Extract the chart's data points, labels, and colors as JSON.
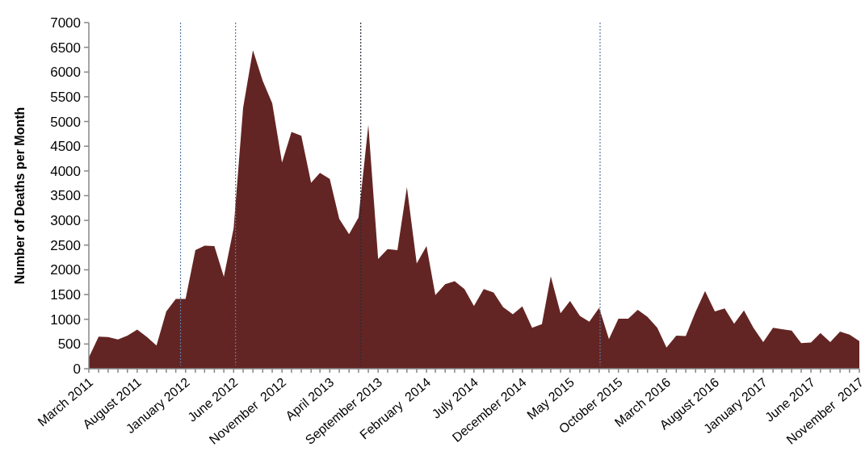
{
  "chart_data": {
    "type": "area",
    "ylabel": "Number of Deaths per Month",
    "x": [
      "2011-03",
      "2011-04",
      "2011-05",
      "2011-06",
      "2011-07",
      "2011-08",
      "2011-09",
      "2011-10",
      "2011-11",
      "2011-12",
      "2012-01",
      "2012-02",
      "2012-03",
      "2012-04",
      "2012-05",
      "2012-06",
      "2012-07",
      "2012-08",
      "2012-09",
      "2012-10",
      "2012-11",
      "2012-12",
      "2013-01",
      "2013-02",
      "2013-03",
      "2013-04",
      "2013-05",
      "2013-06",
      "2013-07",
      "2013-08",
      "2013-09",
      "2013-10",
      "2013-11",
      "2013-12",
      "2014-01",
      "2014-02",
      "2014-03",
      "2014-04",
      "2014-05",
      "2014-06",
      "2014-07",
      "2014-08",
      "2014-09",
      "2014-10",
      "2014-11",
      "2014-12",
      "2015-01",
      "2015-02",
      "2015-03",
      "2015-04",
      "2015-05",
      "2015-06",
      "2015-07",
      "2015-08",
      "2015-09",
      "2015-10",
      "2015-11",
      "2015-12",
      "2016-01",
      "2016-02",
      "2016-03",
      "2016-04",
      "2016-05",
      "2016-06",
      "2016-07",
      "2016-08",
      "2016-09",
      "2016-10",
      "2016-11",
      "2016-12",
      "2017-01",
      "2017-02",
      "2017-03",
      "2017-04",
      "2017-05",
      "2017-06",
      "2017-07",
      "2017-08",
      "2017-09",
      "2017-10",
      "2017-11"
    ],
    "series": [
      {
        "color": "#632523",
        "values": [
          230,
          650,
          640,
          590,
          670,
          790,
          640,
          470,
          1160,
          1410,
          1410,
          2400,
          2490,
          2480,
          1860,
          2840,
          5280,
          6440,
          5820,
          5370,
          4170,
          4790,
          4710,
          3760,
          3960,
          3840,
          3030,
          2720,
          3060,
          4930,
          2220,
          2420,
          2400,
          3670,
          2130,
          2480,
          1490,
          1710,
          1770,
          1610,
          1270,
          1610,
          1540,
          1250,
          1100,
          1260,
          830,
          900,
          1870,
          1120,
          1370,
          1070,
          950,
          1230,
          600,
          1010,
          1010,
          1190,
          1050,
          830,
          430,
          670,
          660,
          1150,
          1570,
          1160,
          1220,
          910,
          1180,
          830,
          540,
          830,
          800,
          770,
          520,
          530,
          720,
          540,
          750,
          690,
          560
        ]
      }
    ],
    "xlim": [
      "2011-03",
      "2017-11"
    ],
    "xticks": [
      {
        "value": "2011-03",
        "label": "March 2011"
      },
      {
        "value": "2011-04",
        "label": null
      },
      {
        "value": "2011-05",
        "label": null
      },
      {
        "value": "2011-06",
        "label": null
      },
      {
        "value": "2011-07",
        "label": null
      },
      {
        "value": "2011-08",
        "label": "August 2011"
      },
      {
        "value": "2011-09",
        "label": null
      },
      {
        "value": "2011-10",
        "label": null
      },
      {
        "value": "2011-11",
        "label": null
      },
      {
        "value": "2011-12",
        "label": null
      },
      {
        "value": "2012-01",
        "label": "January 2012"
      },
      {
        "value": "2012-02",
        "label": null
      },
      {
        "value": "2012-03",
        "label": null
      },
      {
        "value": "2012-04",
        "label": null
      },
      {
        "value": "2012-05",
        "label": null
      },
      {
        "value": "2012-06",
        "label": "June 2012"
      },
      {
        "value": "2012-07",
        "label": null
      },
      {
        "value": "2012-08",
        "label": null
      },
      {
        "value": "2012-09",
        "label": null
      },
      {
        "value": "2012-10",
        "label": null
      },
      {
        "value": "2012-11",
        "label": "November  2012"
      },
      {
        "value": "2012-12",
        "label": null
      },
      {
        "value": "2013-01",
        "label": null
      },
      {
        "value": "2013-02",
        "label": null
      },
      {
        "value": "2013-03",
        "label": null
      },
      {
        "value": "2013-04",
        "label": "April 2013"
      },
      {
        "value": "2013-05",
        "label": null
      },
      {
        "value": "2013-06",
        "label": null
      },
      {
        "value": "2013-07",
        "label": null
      },
      {
        "value": "2013-08",
        "label": null
      },
      {
        "value": "2013-09",
        "label": "September 2013"
      },
      {
        "value": "2013-10",
        "label": null
      },
      {
        "value": "2013-11",
        "label": null
      },
      {
        "value": "2013-12",
        "label": null
      },
      {
        "value": "2014-01",
        "label": null
      },
      {
        "value": "2014-02",
        "label": "February  2014"
      },
      {
        "value": "2014-03",
        "label": null
      },
      {
        "value": "2014-04",
        "label": null
      },
      {
        "value": "2014-05",
        "label": null
      },
      {
        "value": "2014-06",
        "label": null
      },
      {
        "value": "2014-07",
        "label": "July 2014"
      },
      {
        "value": "2014-08",
        "label": null
      },
      {
        "value": "2014-09",
        "label": null
      },
      {
        "value": "2014-10",
        "label": null
      },
      {
        "value": "2014-11",
        "label": null
      },
      {
        "value": "2014-12",
        "label": "December 2014"
      },
      {
        "value": "2015-01",
        "label": null
      },
      {
        "value": "2015-02",
        "label": null
      },
      {
        "value": "2015-03",
        "label": null
      },
      {
        "value": "2015-04",
        "label": null
      },
      {
        "value": "2015-05",
        "label": "May 2015"
      },
      {
        "value": "2015-06",
        "label": null
      },
      {
        "value": "2015-07",
        "label": null
      },
      {
        "value": "2015-08",
        "label": null
      },
      {
        "value": "2015-09",
        "label": null
      },
      {
        "value": "2015-10",
        "label": "October 2015"
      },
      {
        "value": "2015-11",
        "label": null
      },
      {
        "value": "2015-12",
        "label": null
      },
      {
        "value": "2016-01",
        "label": null
      },
      {
        "value": "2016-02",
        "label": null
      },
      {
        "value": "2016-03",
        "label": "March 2016"
      },
      {
        "value": "2016-04",
        "label": null
      },
      {
        "value": "2016-05",
        "label": null
      },
      {
        "value": "2016-06",
        "label": null
      },
      {
        "value": "2016-07",
        "label": null
      },
      {
        "value": "2016-08",
        "label": "August 2016"
      },
      {
        "value": "2016-09",
        "label": null
      },
      {
        "value": "2016-10",
        "label": null
      },
      {
        "value": "2016-11",
        "label": null
      },
      {
        "value": "2016-12",
        "label": null
      },
      {
        "value": "2017-01",
        "label": "January 2017"
      },
      {
        "value": "2017-02",
        "label": null
      },
      {
        "value": "2017-03",
        "label": null
      },
      {
        "value": "2017-04",
        "label": null
      },
      {
        "value": "2017-05",
        "label": null
      },
      {
        "value": "2017-06",
        "label": "June 2017"
      },
      {
        "value": "2017-07",
        "label": null
      },
      {
        "value": "2017-08",
        "label": null
      },
      {
        "value": "2017-09",
        "label": null
      },
      {
        "value": "2017-10",
        "label": null
      },
      {
        "value": "2017-11",
        "label": "November  2017"
      }
    ],
    "ylim": [
      0,
      7000
    ],
    "yticks": [
      0,
      500,
      1000,
      1500,
      2000,
      2500,
      3000,
      3500,
      4000,
      4500,
      5000,
      5500,
      6000,
      6500,
      7000
    ],
    "ref_lines": [
      {
        "axis": "x",
        "value": "2011-12-16",
        "color": "#5a7aa8",
        "line_style": "dotted"
      },
      {
        "axis": "x",
        "value": "2012-06-07",
        "color": "#5a7aa8",
        "line_style": "dotted"
      },
      {
        "axis": "x",
        "value": "2013-07-08",
        "color": "#2a2a3a",
        "line_style": "dotted"
      },
      {
        "axis": "x",
        "value": "2015-08-04",
        "color": "#5a7aa8",
        "line_style": "dotted"
      }
    ],
    "grid": false
  }
}
